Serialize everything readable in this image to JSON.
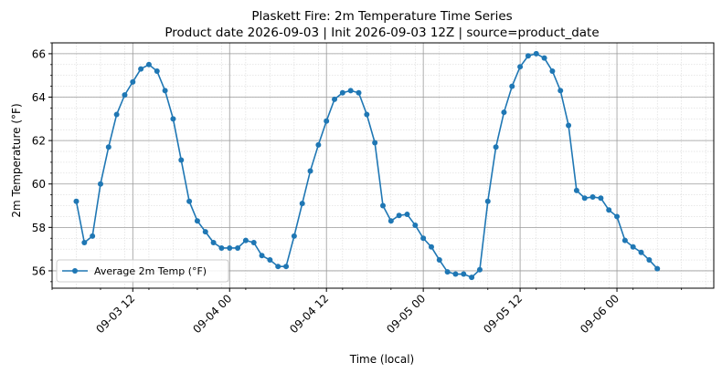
{
  "chart_data": {
    "type": "line",
    "title": "Plaskett Fire: 2m Temperature Time Series",
    "subtitle": "Product date 2026-09-03 | Init 2026-09-03 12Z | source=product_date",
    "xlabel": "Time (local)",
    "ylabel": "2m Temperature (°F)",
    "xlim": [
      "2026-09-03 02:00",
      "2026-09-06 12:00"
    ],
    "ylim": [
      55.2,
      66.5
    ],
    "x_ticks": [
      "2026-09-03 12:00",
      "2026-09-04 00:00",
      "2026-09-04 12:00",
      "2026-09-05 00:00",
      "2026-09-05 12:00",
      "2026-09-06 00:00"
    ],
    "x_tick_labels": [
      "09-03 12",
      "09-04 00",
      "09-04 12",
      "09-05 00",
      "09-05 12",
      "09-06 00"
    ],
    "y_ticks": [
      56,
      58,
      60,
      62,
      64,
      66
    ],
    "y_tick_labels": [
      "56",
      "58",
      "60",
      "62",
      "64",
      "66"
    ],
    "grid": true,
    "minor_grid": true,
    "legend_position": "lower-left",
    "colors": {
      "series": "#1f77b4",
      "major_grid": "#9a9a9a",
      "minor_grid": "#d0d0d0"
    },
    "x_start": "2026-09-03 05:00",
    "x_step_hours": 1,
    "series": [
      {
        "name": "Average 2m Temp (°F)",
        "values": [
          59.2,
          57.3,
          57.6,
          60.0,
          61.7,
          63.2,
          64.1,
          64.7,
          65.3,
          65.5,
          65.2,
          64.3,
          63.0,
          61.1,
          59.2,
          58.3,
          57.8,
          57.3,
          57.05,
          57.05,
          57.05,
          57.4,
          57.3,
          56.7,
          56.5,
          56.2,
          56.2,
          57.6,
          59.1,
          60.6,
          61.8,
          62.9,
          63.9,
          64.2,
          64.3,
          64.2,
          63.2,
          61.9,
          59.0,
          58.3,
          58.55,
          58.6,
          58.1,
          57.5,
          57.1,
          56.5,
          55.95,
          55.85,
          55.85,
          55.7,
          56.05,
          59.2,
          61.7,
          63.3,
          64.5,
          65.4,
          65.9,
          66.0,
          65.8,
          65.2,
          64.3,
          62.7,
          59.7,
          59.35,
          59.4,
          59.35,
          58.8,
          58.5,
          57.4,
          57.1,
          56.85,
          56.5,
          56.1
        ]
      }
    ]
  }
}
